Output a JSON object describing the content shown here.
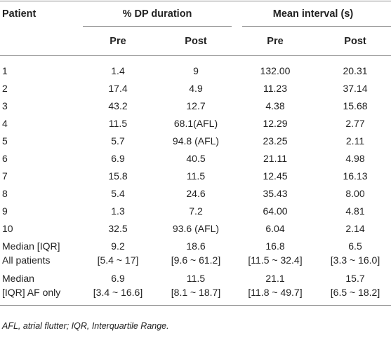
{
  "header": {
    "patient": "Patient",
    "dp_duration": "% DP duration",
    "mean_interval": "Mean interval (s)",
    "pre": "Pre",
    "post": "Post"
  },
  "rows": [
    {
      "patient": "1",
      "dp_pre": "1.4",
      "dp_post": "9",
      "mi_pre": "132.00",
      "mi_post": "20.31"
    },
    {
      "patient": "2",
      "dp_pre": "17.4",
      "dp_post": "4.9",
      "mi_pre": "11.23",
      "mi_post": "37.14"
    },
    {
      "patient": "3",
      "dp_pre": "43.2",
      "dp_post": "12.7",
      "mi_pre": "4.38",
      "mi_post": "15.68"
    },
    {
      "patient": "4",
      "dp_pre": "11.5",
      "dp_post": "68.1(AFL)",
      "mi_pre": "12.29",
      "mi_post": "2.77"
    },
    {
      "patient": "5",
      "dp_pre": "5.7",
      "dp_post": "94.8 (AFL)",
      "mi_pre": "23.25",
      "mi_post": "2.11"
    },
    {
      "patient": "6",
      "dp_pre": "6.9",
      "dp_post": "40.5",
      "mi_pre": "21.11",
      "mi_post": "4.98"
    },
    {
      "patient": "7",
      "dp_pre": "15.8",
      "dp_post": "11.5",
      "mi_pre": "12.45",
      "mi_post": "16.13"
    },
    {
      "patient": "8",
      "dp_pre": "5.4",
      "dp_post": "24.6",
      "mi_pre": "35.43",
      "mi_post": "8.00"
    },
    {
      "patient": "9",
      "dp_pre": "1.3",
      "dp_post": "7.2",
      "mi_pre": "64.00",
      "mi_post": "4.81"
    },
    {
      "patient": "10",
      "dp_pre": "32.5",
      "dp_post": "93.6 (AFL)",
      "mi_pre": "6.04",
      "mi_post": "2.14"
    }
  ],
  "summary": [
    {
      "label_line1": "Median [IQR]",
      "label_line2": "All patients",
      "dp_pre": "9.2",
      "dp_pre_iqr": "[5.4 ~ 17]",
      "dp_post": "18.6",
      "dp_post_iqr": "[9.6 ~ 61.2]",
      "mi_pre": "16.8",
      "mi_pre_iqr": "[11.5 ~ 32.4]",
      "mi_post": "6.5",
      "mi_post_iqr": "[3.3 ~ 16.0]"
    },
    {
      "label_line1": "Median",
      "label_line2": "[IQR] AF only",
      "dp_pre": "6.9",
      "dp_pre_iqr": "[3.4 ~ 16.6]",
      "dp_post": "11.5",
      "dp_post_iqr": "[8.1 ~ 18.7]",
      "mi_pre": "21.1",
      "mi_pre_iqr": "[11.8 ~ 49.7]",
      "mi_post": "15.7",
      "mi_post_iqr": "[6.5 ~ 18.2]"
    }
  ],
  "footnote": "AFL, atrial flutter; IQR, Interquartile Range."
}
